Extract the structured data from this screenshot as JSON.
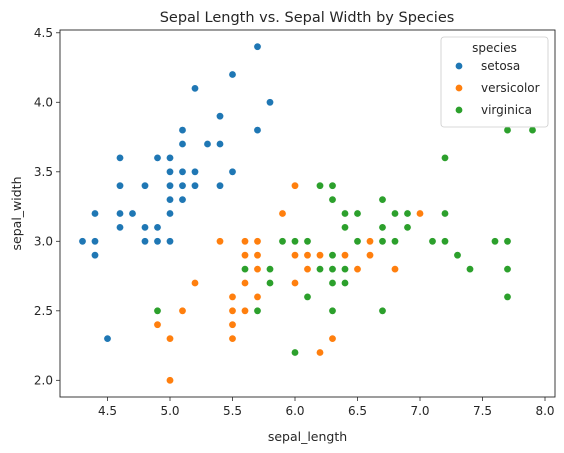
{
  "chart_data": {
    "type": "scatter",
    "title": "Sepal Length vs. Sepal Width by Species",
    "xlabel": "sepal_length",
    "ylabel": "sepal_width",
    "xlim": [
      4.12,
      8.08
    ],
    "ylim": [
      1.88,
      4.52
    ],
    "xticks": [
      4.5,
      5.0,
      5.5,
      6.0,
      6.5,
      7.0,
      7.5,
      8.0
    ],
    "xtick_labels": [
      "4.5",
      "5.0",
      "5.5",
      "6.0",
      "6.5",
      "7.0",
      "7.5",
      "8.0"
    ],
    "yticks": [
      2.0,
      2.5,
      3.0,
      3.5,
      4.0,
      4.5
    ],
    "ytick_labels": [
      "2.0",
      "2.5",
      "3.0",
      "3.5",
      "4.0",
      "4.5"
    ],
    "grid": false,
    "legend": {
      "title": "species",
      "placement": "top-right"
    },
    "series": [
      {
        "name": "setosa",
        "color": "#1f77b4",
        "points": [
          [
            4.3,
            3.0
          ],
          [
            4.4,
            2.9
          ],
          [
            4.4,
            3.0
          ],
          [
            4.4,
            3.2
          ],
          [
            4.5,
            2.3
          ],
          [
            4.6,
            3.1
          ],
          [
            4.6,
            3.2
          ],
          [
            4.6,
            3.4
          ],
          [
            4.6,
            3.6
          ],
          [
            4.7,
            3.2
          ],
          [
            4.8,
            3.0
          ],
          [
            4.8,
            3.1
          ],
          [
            4.8,
            3.4
          ],
          [
            4.9,
            3.0
          ],
          [
            4.9,
            3.1
          ],
          [
            4.9,
            3.6
          ],
          [
            5.0,
            3.0
          ],
          [
            5.0,
            3.2
          ],
          [
            5.0,
            3.3
          ],
          [
            5.0,
            3.4
          ],
          [
            5.0,
            3.5
          ],
          [
            5.0,
            3.6
          ],
          [
            5.1,
            3.3
          ],
          [
            5.1,
            3.4
          ],
          [
            5.1,
            3.5
          ],
          [
            5.1,
            3.7
          ],
          [
            5.1,
            3.8
          ],
          [
            5.2,
            3.4
          ],
          [
            5.2,
            3.5
          ],
          [
            5.2,
            4.1
          ],
          [
            5.3,
            3.7
          ],
          [
            5.4,
            3.4
          ],
          [
            5.4,
            3.7
          ],
          [
            5.4,
            3.9
          ],
          [
            5.5,
            3.5
          ],
          [
            5.5,
            4.2
          ],
          [
            5.7,
            3.8
          ],
          [
            5.7,
            4.4
          ],
          [
            5.8,
            4.0
          ]
        ]
      },
      {
        "name": "versicolor",
        "color": "#ff7f0e",
        "points": [
          [
            4.9,
            2.4
          ],
          [
            5.0,
            2.0
          ],
          [
            5.0,
            2.3
          ],
          [
            5.1,
            2.5
          ],
          [
            5.2,
            2.7
          ],
          [
            5.4,
            3.0
          ],
          [
            5.5,
            2.3
          ],
          [
            5.5,
            2.4
          ],
          [
            5.5,
            2.5
          ],
          [
            5.5,
            2.6
          ],
          [
            5.6,
            2.5
          ],
          [
            5.6,
            2.7
          ],
          [
            5.6,
            2.9
          ],
          [
            5.6,
            3.0
          ],
          [
            5.7,
            2.6
          ],
          [
            5.7,
            2.8
          ],
          [
            5.7,
            2.9
          ],
          [
            5.7,
            3.0
          ],
          [
            5.8,
            2.7
          ],
          [
            5.9,
            3.0
          ],
          [
            5.9,
            3.2
          ],
          [
            6.0,
            2.2
          ],
          [
            6.0,
            2.7
          ],
          [
            6.0,
            2.9
          ],
          [
            6.0,
            3.4
          ],
          [
            6.1,
            2.8
          ],
          [
            6.1,
            2.9
          ],
          [
            6.1,
            3.0
          ],
          [
            6.2,
            2.2
          ],
          [
            6.2,
            2.9
          ],
          [
            6.3,
            2.3
          ],
          [
            6.3,
            2.5
          ],
          [
            6.3,
            3.3
          ],
          [
            6.4,
            2.9
          ],
          [
            6.4,
            3.2
          ],
          [
            6.5,
            2.8
          ],
          [
            6.6,
            2.9
          ],
          [
            6.6,
            3.0
          ],
          [
            6.7,
            3.0
          ],
          [
            6.7,
            3.1
          ],
          [
            6.8,
            2.8
          ],
          [
            6.9,
            3.1
          ],
          [
            7.0,
            3.2
          ]
        ]
      },
      {
        "name": "virginica",
        "color": "#2ca02c",
        "points": [
          [
            4.9,
            2.5
          ],
          [
            5.6,
            2.8
          ],
          [
            5.7,
            2.5
          ],
          [
            5.8,
            2.7
          ],
          [
            5.8,
            2.8
          ],
          [
            5.9,
            3.0
          ],
          [
            6.0,
            2.2
          ],
          [
            6.0,
            3.0
          ],
          [
            6.1,
            2.6
          ],
          [
            6.1,
            3.0
          ],
          [
            6.2,
            2.8
          ],
          [
            6.2,
            3.4
          ],
          [
            6.3,
            2.5
          ],
          [
            6.3,
            2.7
          ],
          [
            6.3,
            2.8
          ],
          [
            6.3,
            2.9
          ],
          [
            6.3,
            3.3
          ],
          [
            6.3,
            3.4
          ],
          [
            6.4,
            2.7
          ],
          [
            6.4,
            2.8
          ],
          [
            6.4,
            3.1
          ],
          [
            6.4,
            3.2
          ],
          [
            6.5,
            3.0
          ],
          [
            6.5,
            3.2
          ],
          [
            6.7,
            2.5
          ],
          [
            6.7,
            3.0
          ],
          [
            6.7,
            3.1
          ],
          [
            6.7,
            3.3
          ],
          [
            6.8,
            3.0
          ],
          [
            6.8,
            3.2
          ],
          [
            6.9,
            3.1
          ],
          [
            6.9,
            3.2
          ],
          [
            7.1,
            3.0
          ],
          [
            7.2,
            3.0
          ],
          [
            7.2,
            3.2
          ],
          [
            7.2,
            3.6
          ],
          [
            7.3,
            2.9
          ],
          [
            7.4,
            2.8
          ],
          [
            7.6,
            3.0
          ],
          [
            7.7,
            2.6
          ],
          [
            7.7,
            2.8
          ],
          [
            7.7,
            3.0
          ],
          [
            7.7,
            3.8
          ],
          [
            7.9,
            3.8
          ]
        ]
      }
    ]
  }
}
